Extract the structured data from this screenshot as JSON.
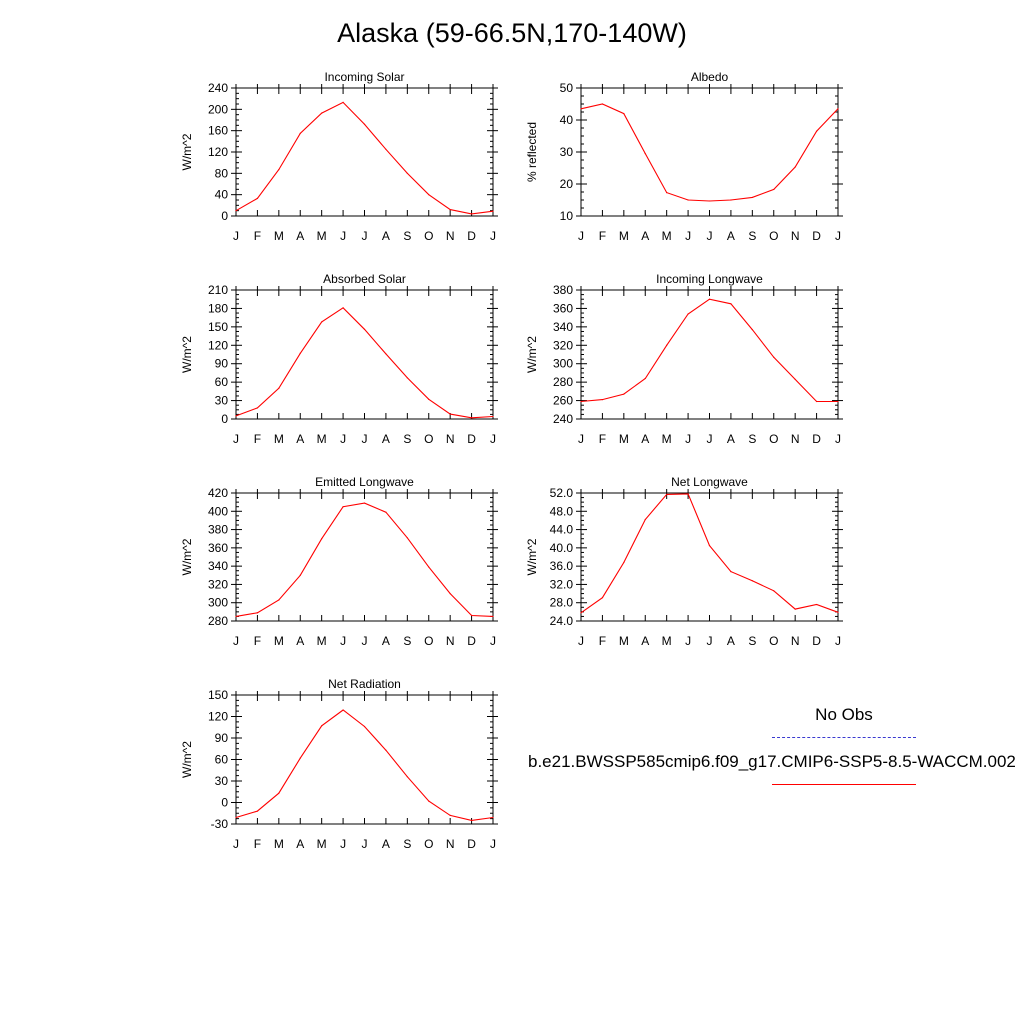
{
  "title": "Alaska (59-66.5N,170-140W)",
  "colors": {
    "model_line": "#ff0000",
    "obs_line": "#3a3ad0",
    "axis": "#000000"
  },
  "legend": {
    "obs_label": "No Obs",
    "case_label": "b.e21.BWSSP585cmip6.f09_g17.CMIP6-SSP5-8.5-WACCM.002"
  },
  "chart_data": [
    {
      "type": "line",
      "title": "Incoming Solar",
      "ylabel": "W/m^2",
      "categories": [
        "J",
        "F",
        "M",
        "A",
        "M",
        "J",
        "J",
        "A",
        "S",
        "O",
        "N",
        "D",
        "J"
      ],
      "ylim": [
        0,
        240
      ],
      "yticks": [
        "0",
        "40",
        "80",
        "120",
        "160",
        "200",
        "240"
      ],
      "series": [
        {
          "values": [
            10,
            33,
            87,
            155,
            193,
            213,
            172,
            125,
            80,
            40,
            12,
            4,
            9
          ]
        }
      ]
    },
    {
      "type": "line",
      "title": "Albedo",
      "ylabel": "% reflected",
      "categories": [
        "J",
        "F",
        "M",
        "A",
        "M",
        "J",
        "J",
        "A",
        "S",
        "O",
        "N",
        "D",
        "J"
      ],
      "ylim": [
        10,
        50
      ],
      "yticks": [
        "10",
        "20",
        "30",
        "40",
        "50"
      ],
      "series": [
        {
          "values": [
            43.5,
            45,
            42,
            29.5,
            17.3,
            15,
            14.7,
            15,
            15.8,
            18.3,
            25.3,
            36.5,
            43.5
          ]
        }
      ]
    },
    {
      "type": "line",
      "title": "Absorbed Solar",
      "ylabel": "W/m^2",
      "categories": [
        "J",
        "F",
        "M",
        "A",
        "M",
        "J",
        "J",
        "A",
        "S",
        "O",
        "N",
        "D",
        "J"
      ],
      "ylim": [
        0,
        210
      ],
      "yticks": [
        "0",
        "30",
        "60",
        "90",
        "120",
        "150",
        "180",
        "210"
      ],
      "series": [
        {
          "values": [
            5,
            18,
            50,
            107,
            158,
            181,
            146,
            106,
            67,
            32,
            8,
            2,
            4
          ]
        }
      ]
    },
    {
      "type": "line",
      "title": "Incoming Longwave",
      "ylabel": "W/m^2",
      "categories": [
        "J",
        "F",
        "M",
        "A",
        "M",
        "J",
        "J",
        "A",
        "S",
        "O",
        "N",
        "D",
        "J"
      ],
      "ylim": [
        240,
        380
      ],
      "yticks": [
        "240",
        "260",
        "280",
        "300",
        "320",
        "340",
        "360",
        "380"
      ],
      "series": [
        {
          "values": [
            259,
            261,
            267,
            284,
            320,
            354,
            370,
            365,
            337,
            307,
            283,
            259,
            259
          ]
        }
      ]
    },
    {
      "type": "line",
      "title": "Emitted Longwave",
      "ylabel": "W/m^2",
      "categories": [
        "J",
        "F",
        "M",
        "A",
        "M",
        "J",
        "J",
        "A",
        "S",
        "O",
        "N",
        "D",
        "J"
      ],
      "ylim": [
        280,
        420
      ],
      "yticks": [
        "280",
        "300",
        "320",
        "340",
        "360",
        "380",
        "400",
        "420"
      ],
      "series": [
        {
          "values": [
            285,
            289,
            303,
            330,
            370,
            405,
            409,
            399,
            371,
            339,
            310,
            286,
            285
          ]
        }
      ]
    },
    {
      "type": "line",
      "title": "Net Longwave",
      "ylabel": "W/m^2",
      "categories": [
        "J",
        "F",
        "M",
        "A",
        "M",
        "J",
        "J",
        "A",
        "S",
        "O",
        "N",
        "D",
        "J"
      ],
      "ylim": [
        24,
        52
      ],
      "yticks": [
        "24.0",
        "28.0",
        "32.0",
        "36.0",
        "40.0",
        "44.0",
        "48.0",
        "52.0"
      ],
      "series": [
        {
          "values": [
            25.8,
            29.1,
            36.8,
            46.2,
            51.7,
            51.8,
            40.5,
            34.8,
            32.8,
            30.6,
            26.6,
            27.6,
            25.9
          ]
        }
      ]
    },
    {
      "type": "line",
      "title": "Net Radiation",
      "ylabel": "W/m^2",
      "categories": [
        "J",
        "F",
        "M",
        "A",
        "M",
        "J",
        "J",
        "A",
        "S",
        "O",
        "N",
        "D",
        "J"
      ],
      "ylim": [
        -30,
        150
      ],
      "yticks": [
        "-30",
        "0",
        "30",
        "60",
        "90",
        "120",
        "150"
      ],
      "series": [
        {
          "values": [
            -21,
            -12,
            13,
            62,
            107,
            129,
            106,
            73,
            36,
            2,
            -18,
            -25,
            -21
          ]
        }
      ]
    }
  ]
}
